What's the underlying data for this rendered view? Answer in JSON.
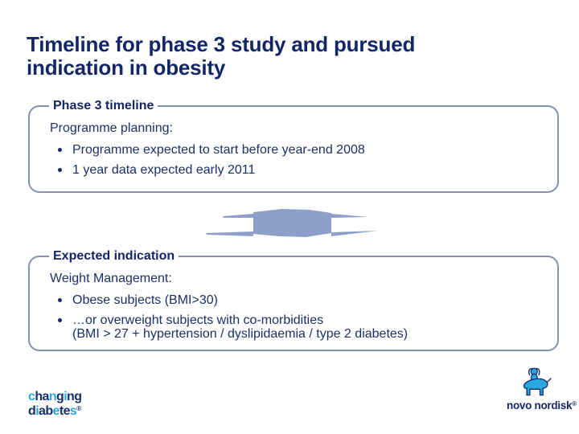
{
  "title": {
    "line1": "Timeline for phase 3 study and pursued",
    "line2": "indication in obesity"
  },
  "boxes": [
    {
      "legend": "Phase 3 timeline",
      "heading": "Programme planning:",
      "bullets": [
        "Programme expected to start before year-end 2008",
        "1 year data expected early 2011"
      ]
    },
    {
      "legend": "Expected indication",
      "heading": "Weight Management:",
      "bullets": [
        "Obese subjects (BMI>30)",
        "…or overweight subjects with co-morbidities"
      ],
      "bullet2_sub": "(BMI > 27 + hypertension / dyslipidaemia / type 2 diabetes)"
    }
  ],
  "arrow": {
    "icon": "flattened-down-arrow",
    "fill": "#8ea0c9"
  },
  "logos": {
    "changing_diabetes": {
      "word1": "changing",
      "word2": "diabetes",
      "registered": "®",
      "word1_colors": [
        "cyan",
        "navy",
        "navy",
        "cyan",
        "navy",
        "cyan",
        "navy",
        "navy"
      ],
      "word2_colors": [
        "navy",
        "cyan",
        "navy",
        "navy",
        "cyan",
        "navy",
        "navy",
        "cyan"
      ],
      "cyan": "#29a8e0",
      "navy": "#162e6e"
    },
    "novo_nordisk": {
      "wordmark": "novo nordisk",
      "registered": "®"
    }
  },
  "colors": {
    "title_text": "#122668",
    "body_text": "#1b3068",
    "panel_border": "#8493ad",
    "arrow_fill": "#8ea0c9",
    "background": "#ffffff"
  }
}
